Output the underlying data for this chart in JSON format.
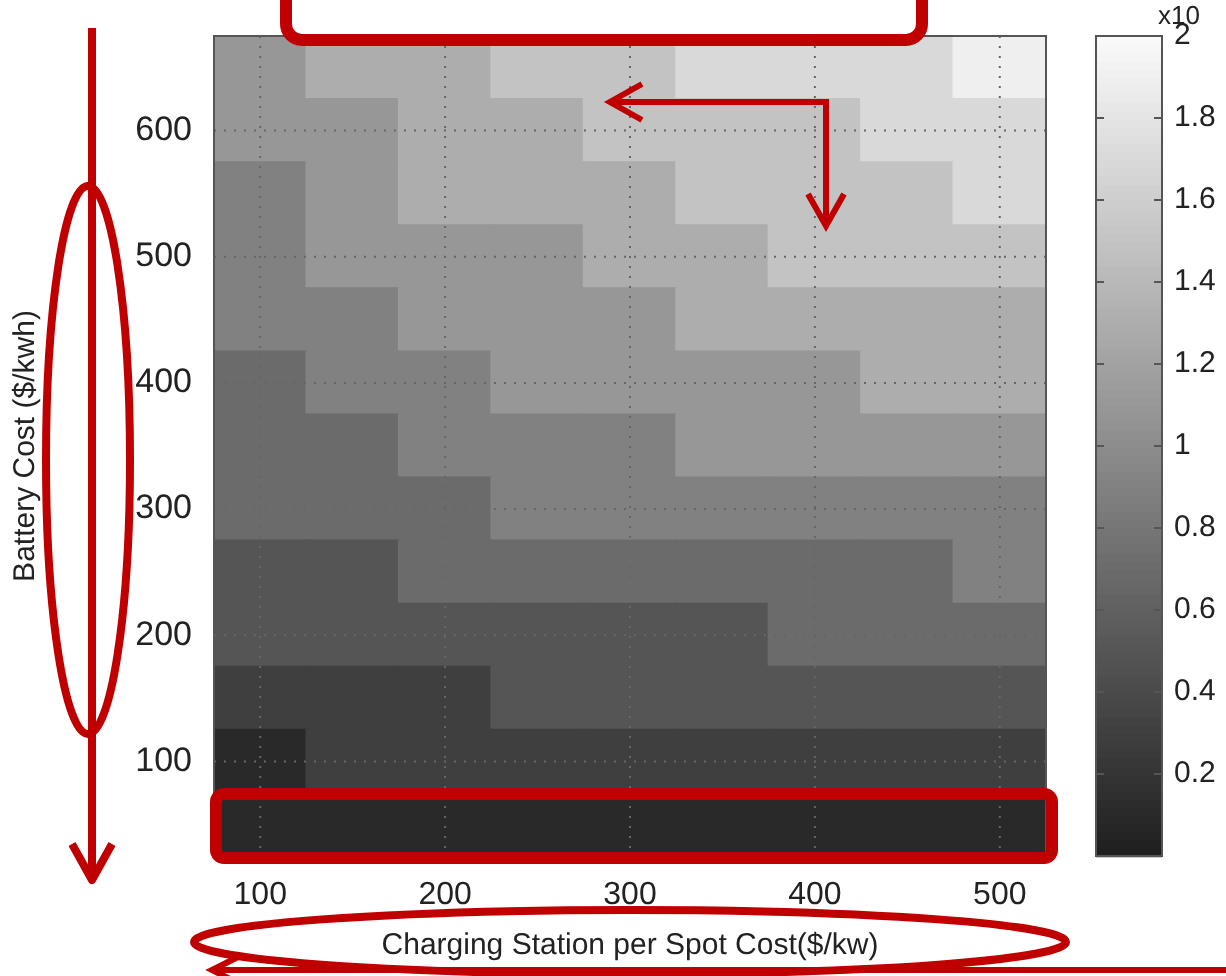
{
  "chart_data": {
    "type": "heatmap",
    "xlabel": "Charging Station per Spot Cost($/kw)",
    "ylabel": "Battery Cost ($/kwh)",
    "categories": [
      "100",
      null,
      "200",
      null,
      "300",
      null,
      "400",
      null,
      "500"
    ],
    "y_categories": [
      null,
      "600",
      null,
      "500",
      null,
      "400",
      null,
      "300",
      null,
      "200",
      null,
      "100",
      null
    ],
    "cells": [
      [
        1.1,
        1.3,
        1.3,
        1.5,
        1.5,
        1.7,
        1.7,
        1.7,
        1.9
      ],
      [
        1.1,
        1.1,
        1.3,
        1.3,
        1.5,
        1.5,
        1.5,
        1.7,
        1.7
      ],
      [
        0.9,
        1.1,
        1.3,
        1.3,
        1.3,
        1.5,
        1.5,
        1.5,
        1.7
      ],
      [
        0.9,
        1.1,
        1.1,
        1.1,
        1.3,
        1.3,
        1.5,
        1.5,
        1.5
      ],
      [
        0.9,
        0.9,
        1.1,
        1.1,
        1.1,
        1.3,
        1.3,
        1.3,
        1.3
      ],
      [
        0.7,
        0.9,
        0.9,
        1.1,
        1.1,
        1.1,
        1.1,
        1.3,
        1.3
      ],
      [
        0.7,
        0.7,
        0.9,
        0.9,
        0.9,
        1.1,
        1.1,
        1.1,
        1.1
      ],
      [
        0.7,
        0.7,
        0.7,
        0.9,
        0.9,
        0.9,
        0.9,
        0.9,
        0.9
      ],
      [
        0.5,
        0.5,
        0.7,
        0.7,
        0.7,
        0.7,
        0.7,
        0.7,
        0.9
      ],
      [
        0.5,
        0.5,
        0.5,
        0.5,
        0.5,
        0.5,
        0.7,
        0.7,
        0.7
      ],
      [
        0.3,
        0.3,
        0.3,
        0.5,
        0.5,
        0.5,
        0.5,
        0.5,
        0.5
      ],
      [
        0.1,
        0.3,
        0.3,
        0.3,
        0.3,
        0.3,
        0.3,
        0.3,
        0.3
      ],
      [
        0.1,
        0.1,
        0.1,
        0.1,
        0.1,
        0.1,
        0.1,
        0.1,
        0.1
      ]
    ],
    "clim": [
      0,
      2
    ],
    "cticks": [
      0.2,
      0.4,
      0.6,
      0.8,
      1,
      1.2,
      1.4,
      1.6,
      1.8,
      2
    ],
    "annotations": [
      "x10"
    ],
    "grid": true
  }
}
